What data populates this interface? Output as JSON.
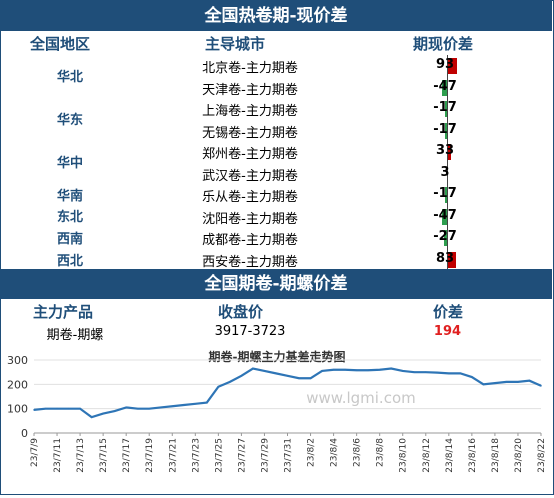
{
  "top": {
    "title": "全国热卷期-现价差",
    "headers": [
      "全国地区",
      "主导城市",
      "期现价差"
    ],
    "regions": [
      "华北",
      "华东",
      "华中",
      "华南",
      "东北",
      "西南",
      "西北"
    ],
    "rows": [
      {
        "city": "北京卷-主力期卷",
        "value": 93
      },
      {
        "city": "天津卷-主力期卷",
        "value": -47
      },
      {
        "city": "上海卷-主力期卷",
        "value": -17
      },
      {
        "city": "无锡卷-主力期卷",
        "value": -17
      },
      {
        "city": "郑州卷-主力期卷",
        "value": 33
      },
      {
        "city": "武汉卷-主力期卷",
        "value": 3
      },
      {
        "city": "乐从卷-主力期卷",
        "value": -17
      },
      {
        "city": "沈阳卷-主力期卷",
        "value": -47
      },
      {
        "city": "成都卷-主力期卷",
        "value": -27
      },
      {
        "city": "西安卷-主力期卷",
        "value": 83
      }
    ]
  },
  "middle": {
    "title": "全国期卷-期螺价差",
    "headers": [
      "主力产品",
      "收盘价",
      "价差"
    ],
    "row": {
      "product": "期卷-期螺",
      "close": "3917-3723",
      "spread": "194"
    }
  },
  "colors": {
    "navy": "#1f4e79",
    "positive": "#c00000",
    "negative": "#2e9e4f",
    "line": "#2e75b6",
    "spread": "#e02020"
  },
  "chart_data": {
    "type": "line",
    "title": "期卷-期螺主力基差走势图",
    "watermark": "www.lgmi.com",
    "ylim": [
      0,
      300
    ],
    "yticks": [
      0,
      100,
      200,
      300
    ],
    "x": [
      "23/7/9",
      "23/7/10",
      "23/7/11",
      "23/7/12",
      "23/7/13",
      "23/7/14",
      "23/7/15",
      "23/7/16",
      "23/7/17",
      "23/7/18",
      "23/7/19",
      "23/7/20",
      "23/7/21",
      "23/7/22",
      "23/7/23",
      "23/7/24",
      "23/7/25",
      "23/7/26",
      "23/7/27",
      "23/7/28",
      "23/7/29",
      "23/7/30",
      "23/7/31",
      "23/8/1",
      "23/8/2",
      "23/8/3",
      "23/8/4",
      "23/8/5",
      "23/8/6",
      "23/8/7",
      "23/8/8",
      "23/8/9",
      "23/8/10",
      "23/8/11",
      "23/8/12",
      "23/8/13",
      "23/8/14",
      "23/8/15",
      "23/8/16",
      "23/8/17",
      "23/8/18",
      "23/8/19",
      "23/8/20",
      "23/8/21",
      "23/8/22"
    ],
    "xticks": [
      "23/7/9",
      "23/7/11",
      "23/7/13",
      "23/7/15",
      "23/7/17",
      "23/7/19",
      "23/7/21",
      "23/7/23",
      "23/7/25",
      "23/7/27",
      "23/7/29",
      "23/7/31",
      "23/8/2",
      "23/8/4",
      "23/8/6",
      "23/8/8",
      "23/8/10",
      "23/8/12",
      "23/8/14",
      "23/8/16",
      "23/8/18",
      "23/8/20",
      "23/8/22"
    ],
    "series": [
      {
        "values": [
          95,
          100,
          100,
          100,
          100,
          65,
          80,
          90,
          105,
          100,
          100,
          105,
          110,
          115,
          120,
          125,
          190,
          210,
          235,
          265,
          255,
          245,
          235,
          225,
          225,
          255,
          260,
          260,
          258,
          258,
          260,
          265,
          255,
          250,
          250,
          248,
          245,
          245,
          230,
          200,
          205,
          210,
          210,
          215,
          194
        ]
      }
    ]
  }
}
